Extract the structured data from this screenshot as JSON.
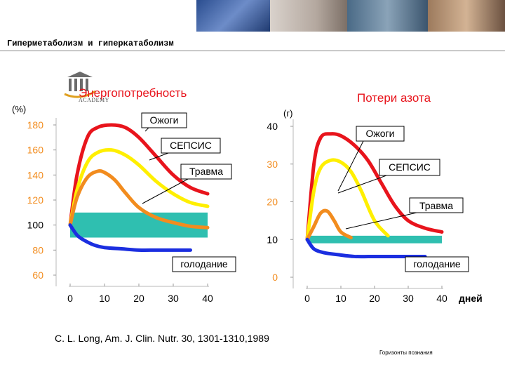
{
  "slide": {
    "title": "Гиперметаболизм и гиперкатаболизм",
    "citation": "C. L. Long, Am. J. Clin. Nutr. 30, 1301-1310,1989",
    "footer": "Горизонты познания",
    "logo_icon": "academy-columns-logo",
    "logo_text": "ACADEMY"
  },
  "chart_data": [
    {
      "type": "line",
      "title": "Энергопотребность",
      "ylabel": "(%)",
      "x_ticks": [
        0,
        10,
        20,
        30,
        40
      ],
      "y_ticks": [
        60,
        80,
        100,
        120,
        140,
        160,
        180
      ],
      "ylim": [
        60,
        180
      ],
      "normal_band": [
        90,
        110
      ],
      "series": [
        {
          "name": "Ожоги",
          "color": "#e8141c",
          "x": [
            0,
            2,
            5,
            8,
            12,
            16,
            20,
            25,
            30,
            35,
            40
          ],
          "y": [
            100,
            140,
            170,
            178,
            180,
            178,
            170,
            155,
            140,
            130,
            125
          ]
        },
        {
          "name": "СЕПСИС",
          "color": "#ffef00",
          "x": [
            0,
            2,
            5,
            8,
            12,
            16,
            20,
            25,
            30,
            35,
            40
          ],
          "y": [
            100,
            128,
            150,
            158,
            160,
            156,
            148,
            135,
            125,
            118,
            115
          ]
        },
        {
          "name": "Травма",
          "color": "#f28c1e",
          "x": [
            0,
            2,
            5,
            8,
            10,
            13,
            16,
            20,
            25,
            30,
            35,
            40
          ],
          "y": [
            100,
            122,
            138,
            143,
            142,
            136,
            126,
            114,
            106,
            102,
            99,
            98
          ]
        },
        {
          "name": "голодание",
          "color": "#1b2ee0",
          "x": [
            0,
            2,
            4,
            7,
            10,
            15,
            20,
            25,
            30,
            35
          ],
          "y": [
            100,
            92,
            88,
            84,
            82,
            81,
            80,
            80,
            80,
            80
          ]
        }
      ],
      "labels": {
        "burns": "Ожоги",
        "sepsis": "СЕПСИС",
        "trauma": "Травма",
        "starvation": "голодание"
      }
    },
    {
      "type": "line",
      "title": "Потери азота",
      "ylabel": "(г)",
      "xlabel": "дней",
      "x_ticks": [
        0,
        10,
        20,
        30,
        40
      ],
      "y_ticks": [
        0,
        10,
        20,
        30,
        40
      ],
      "ylim": [
        0,
        40
      ],
      "normal_band": [
        9,
        11
      ],
      "series": [
        {
          "name": "Ожоги",
          "color": "#e8141c",
          "x": [
            0,
            2,
            4,
            7,
            10,
            14,
            18,
            22,
            26,
            30,
            35,
            40
          ],
          "y": [
            10,
            30,
            37,
            38,
            37.5,
            35,
            31,
            25,
            19,
            15,
            13,
            12
          ]
        },
        {
          "name": "СЕПСИС",
          "color": "#ffef00",
          "x": [
            0,
            2,
            4,
            7,
            10,
            13,
            16,
            20,
            24
          ],
          "y": [
            10,
            23,
            29,
            31,
            30.5,
            28,
            23,
            15,
            11
          ]
        },
        {
          "name": "Травма",
          "color": "#f28c1e",
          "x": [
            0,
            2,
            4,
            6,
            8,
            10,
            13
          ],
          "y": [
            10,
            13.5,
            17,
            17.5,
            15,
            12,
            10.5
          ]
        },
        {
          "name": "голодание",
          "color": "#1b2ee0",
          "x": [
            0,
            2,
            5,
            9,
            14,
            20,
            25,
            30,
            35
          ],
          "y": [
            10,
            7.5,
            6.5,
            6,
            5.5,
            5.5,
            5.5,
            5.5,
            5.5
          ]
        }
      ],
      "labels": {
        "burns": "Ожоги",
        "sepsis": "СЕПСИС",
        "trauma": "Травма",
        "starvation": "голодание"
      }
    }
  ]
}
